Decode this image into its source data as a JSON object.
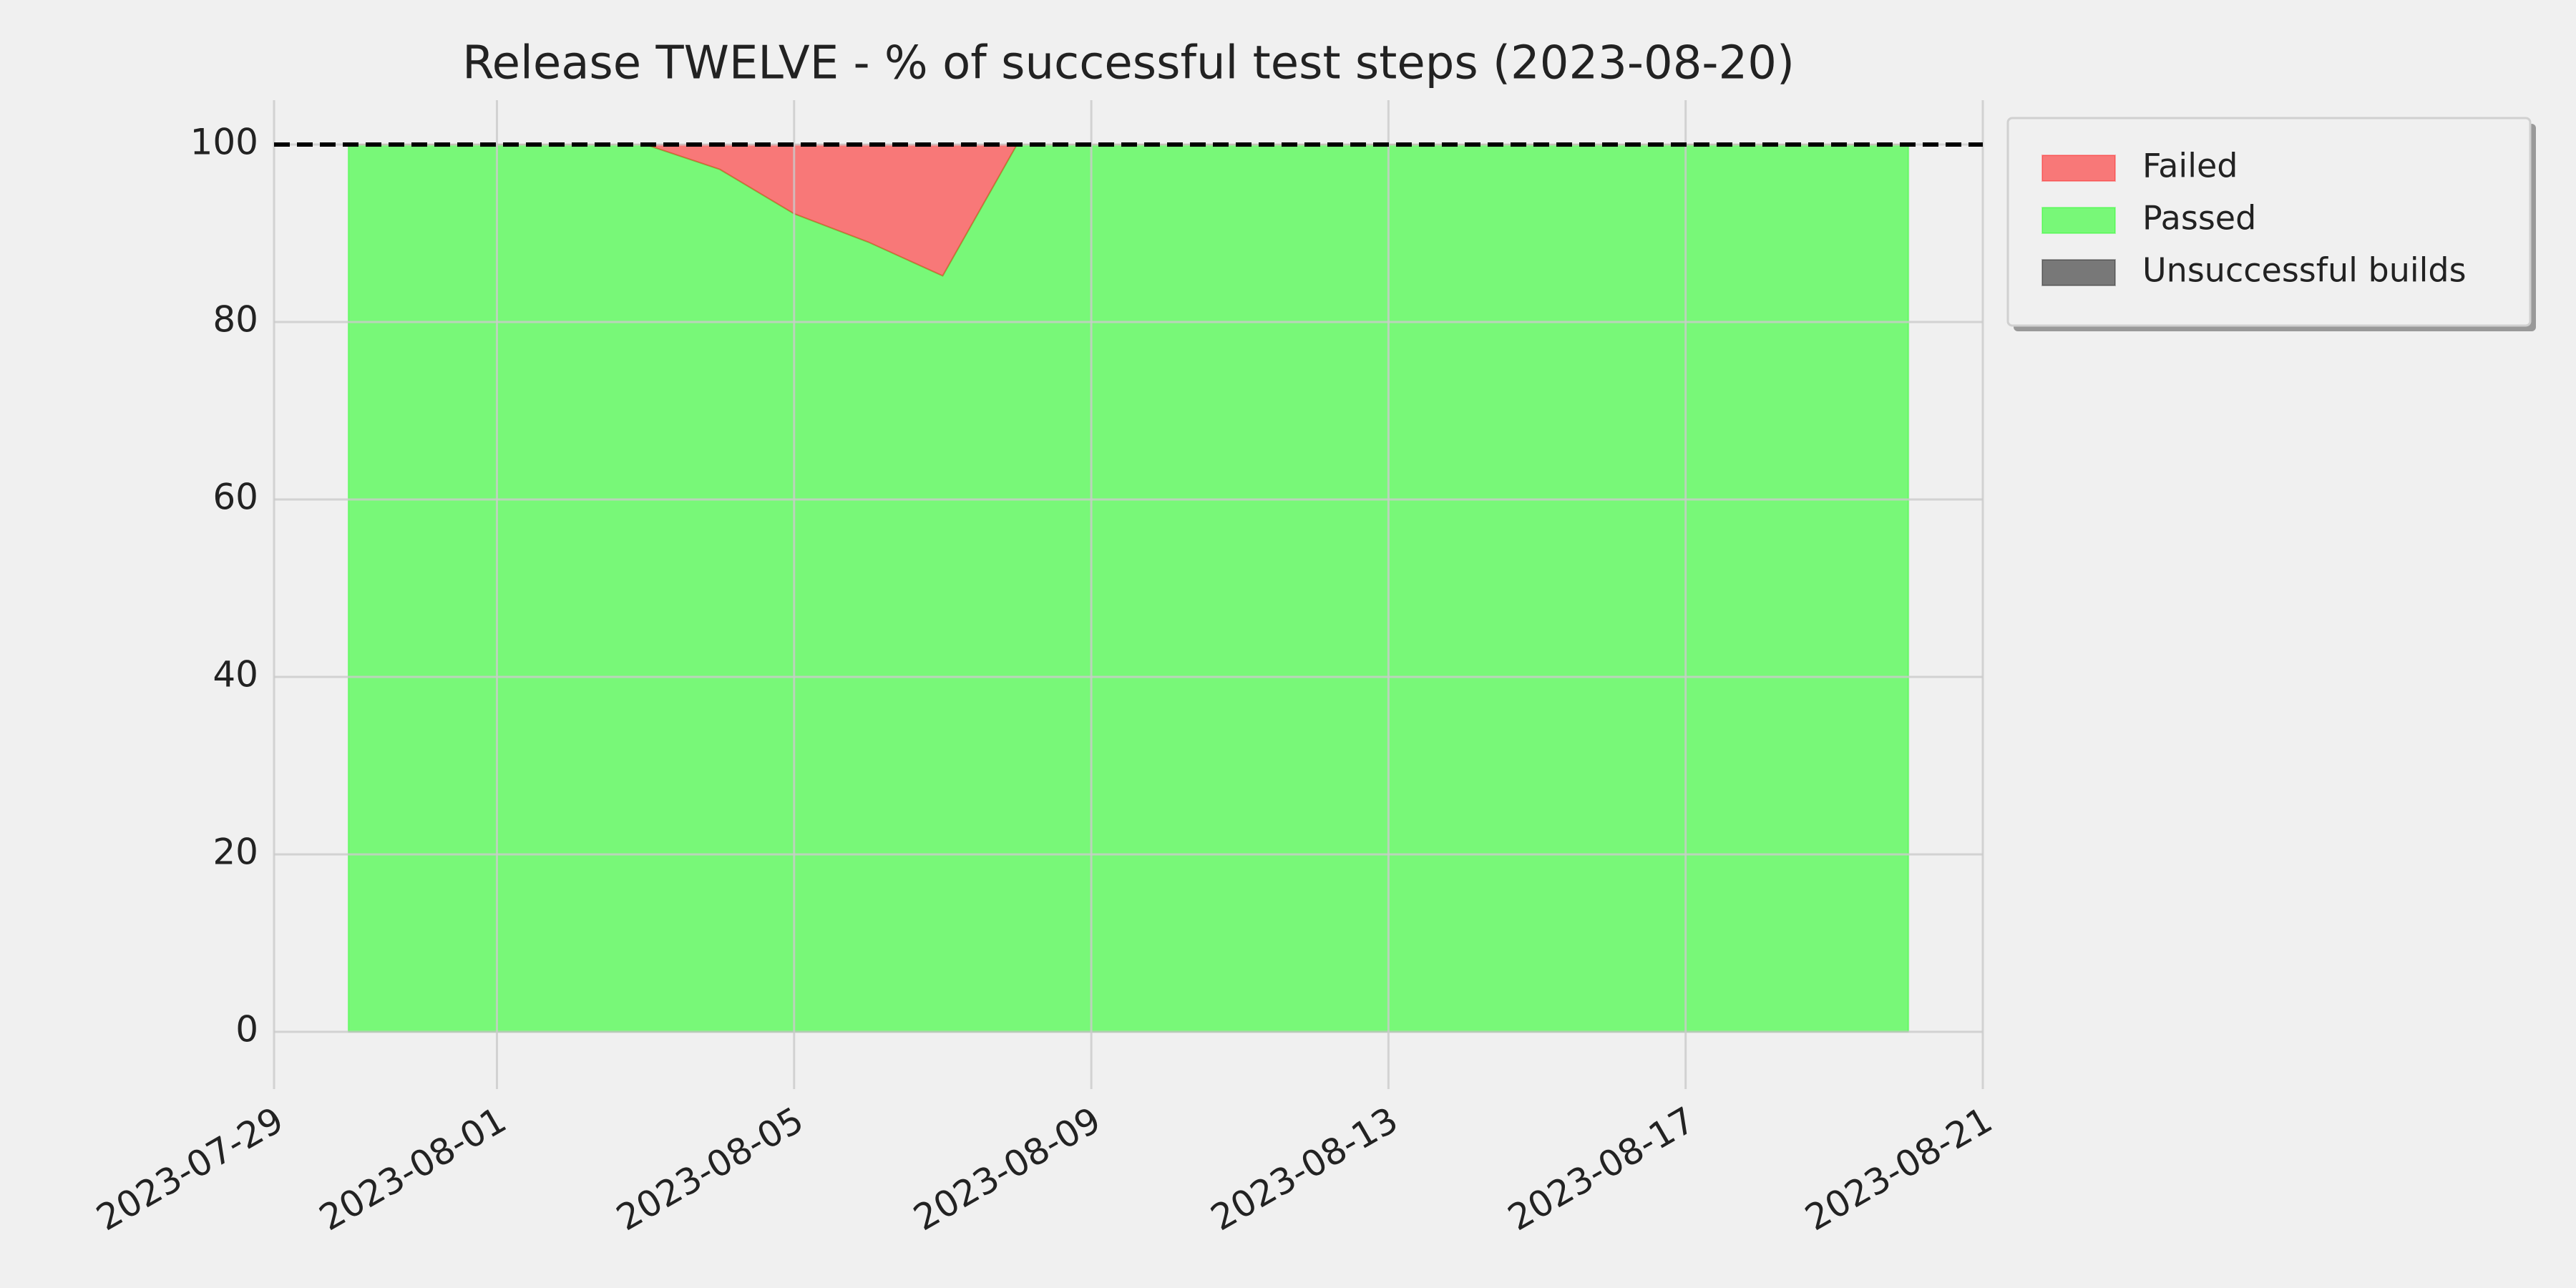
{
  "chart_data": {
    "type": "stacked_area",
    "title": "Release TWELVE - % of successful test steps (2023-08-20)",
    "x": [
      "2023-07-30",
      "2023-07-31",
      "2023-08-01",
      "2023-08-02",
      "2023-08-03",
      "2023-08-04",
      "2023-08-05",
      "2023-08-06",
      "2023-08-07",
      "2023-08-08",
      "2023-08-09",
      "2023-08-10",
      "2023-08-11",
      "2023-08-12",
      "2023-08-13",
      "2023-08-14",
      "2023-08-15",
      "2023-08-16",
      "2023-08-17",
      "2023-08-18",
      "2023-08-19",
      "2023-08-20"
    ],
    "series": [
      {
        "name": "Failed",
        "color": "#ff0000",
        "values": [
          0,
          0,
          0,
          0,
          0,
          2.8,
          7.8,
          11,
          14.8,
          0,
          0,
          0,
          0,
          0,
          0,
          0,
          0,
          0,
          0,
          0,
          0,
          0
        ]
      },
      {
        "name": "Passed",
        "color": "#00ff00",
        "values": [
          100,
          100,
          100,
          100,
          100,
          97.2,
          92.2,
          89,
          85.2,
          100,
          100,
          100,
          100,
          100,
          100,
          100,
          100,
          100,
          100,
          100,
          100,
          100
        ]
      },
      {
        "name": "Unsuccessful builds",
        "color": "#000000",
        "values": [
          0,
          0,
          0,
          0,
          0,
          0,
          0,
          0,
          0,
          0,
          0,
          0,
          0,
          0,
          0,
          0,
          0,
          0,
          0,
          0,
          0,
          0
        ]
      }
    ],
    "alpha": 0.5,
    "reference_line": 100,
    "xlim": [
      "2023-07-29",
      "2023-08-21"
    ],
    "xticks": [
      "2023-07-29",
      "2023-08-01",
      "2023-08-05",
      "2023-08-09",
      "2023-08-13",
      "2023-08-17",
      "2023-08-21"
    ],
    "ylim": [
      -5,
      105
    ],
    "yticks": [
      0,
      20,
      40,
      60,
      80,
      100
    ],
    "grid": true,
    "legend": "outside-upper-right"
  }
}
